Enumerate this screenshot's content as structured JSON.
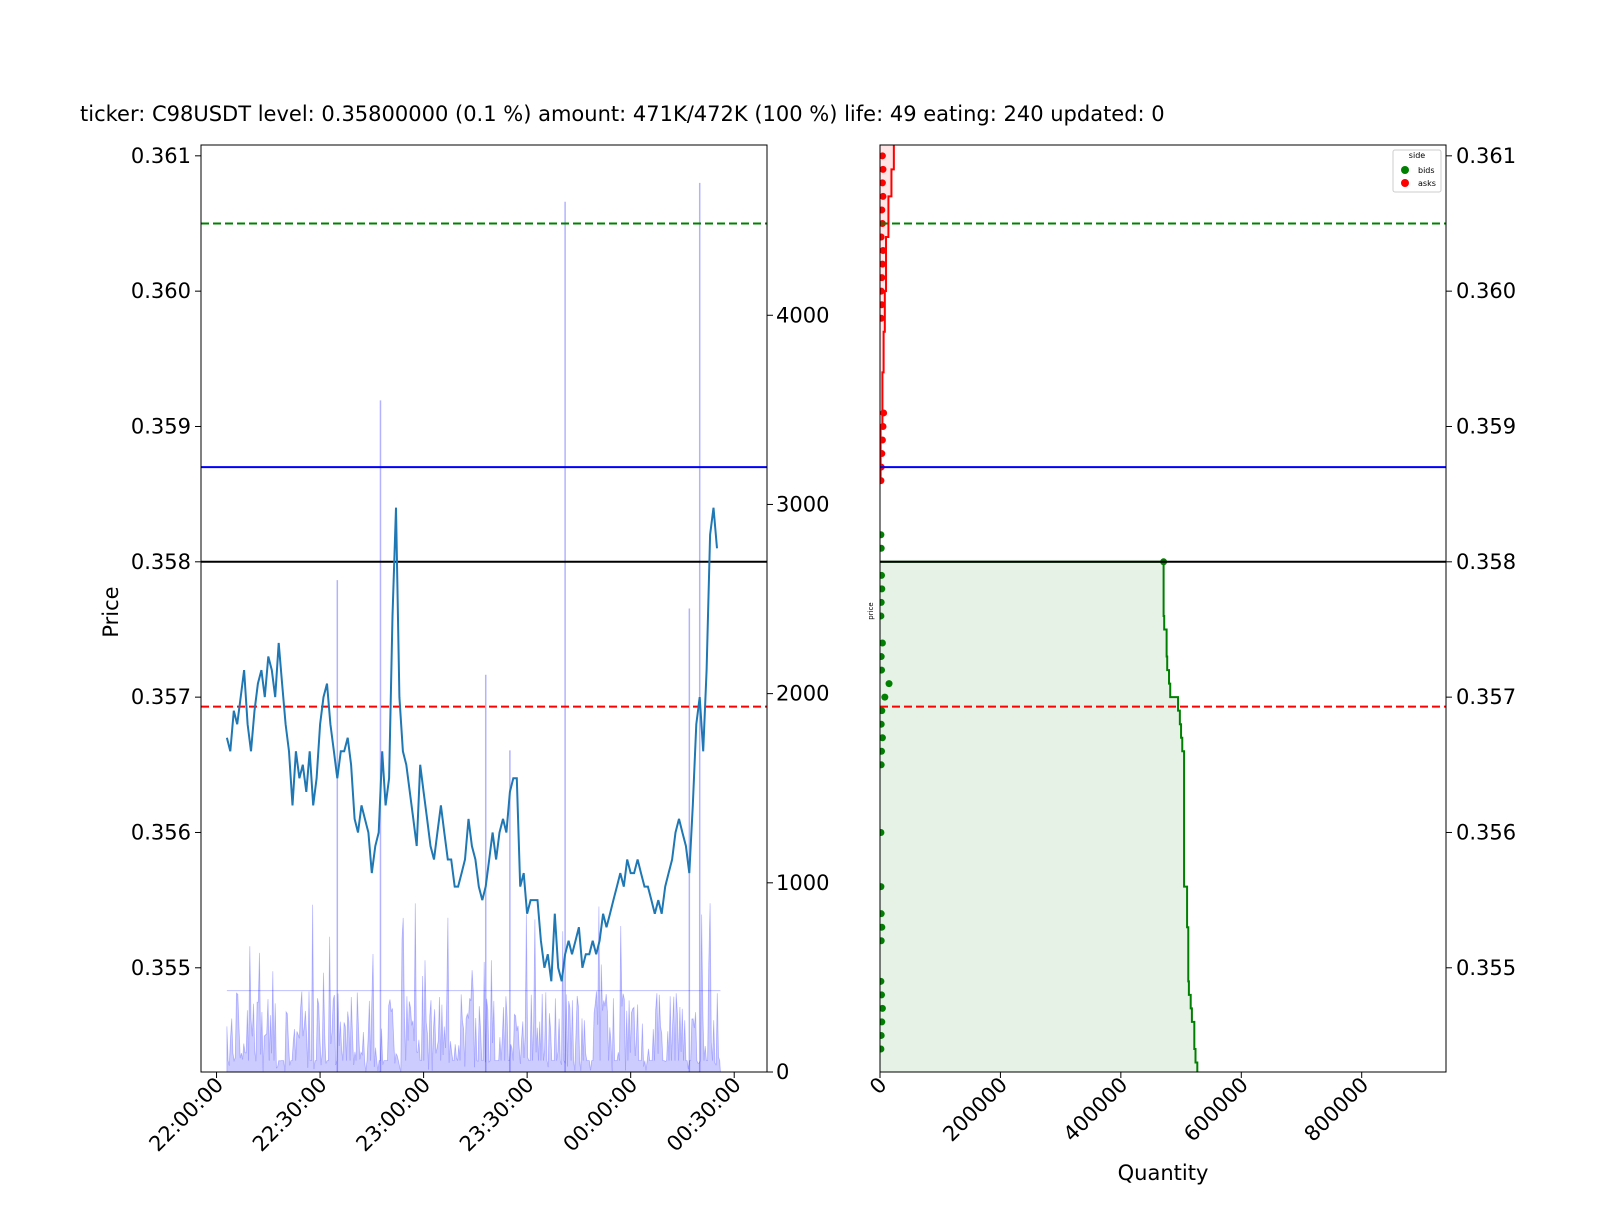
{
  "title": "ticker: C98USDT level: 0.35800000 (0.1 %) amount: 471K/472K (100 %)  life: 49 eating: 240 updated: 0",
  "colors": {
    "price_line": "#1f77b4",
    "volume_fill": "#0000ff",
    "bids": "#008000",
    "asks": "#ff0000",
    "level_line": "#000000",
    "mid_line": "#0000ff"
  },
  "chart_data": [
    {
      "type": "line",
      "name": "price-history",
      "ylabel": "Price",
      "xlabel": "",
      "ylim": [
        0.35423,
        0.36108
      ],
      "x_tick_labels": [
        "22:00:00",
        "22:30:00",
        "23:00:00",
        "23:30:00",
        "00:00:00",
        "00:30:00"
      ],
      "x_tick_minutes": [
        0,
        30,
        60,
        90,
        120,
        150
      ],
      "x_range_minutes": [
        -4.5,
        159.5
      ],
      "y_ticks": [
        0.355,
        0.356,
        0.357,
        0.358,
        0.359,
        0.36,
        0.361
      ],
      "y_tick_labels": [
        "0.355",
        "0.356",
        "0.357",
        "0.358",
        "0.359",
        "0.360",
        "0.361"
      ],
      "secondary_y_ticks": [
        0,
        1000,
        2000,
        3000,
        4000
      ],
      "secondary_ylim": [
        0,
        4900
      ],
      "hlines": [
        {
          "value": 0.3605,
          "color": "#008000",
          "style": "dashed"
        },
        {
          "value": 0.3587,
          "color": "#0000ff",
          "style": "solid"
        },
        {
          "value": 0.358,
          "color": "#000000",
          "style": "solid"
        },
        {
          "value": 0.35693,
          "color": "#ff0000",
          "style": "dashed"
        }
      ],
      "price_points": [
        [
          3,
          0.3567
        ],
        [
          4,
          0.3566
        ],
        [
          5,
          0.3569
        ],
        [
          6,
          0.3568
        ],
        [
          7,
          0.357
        ],
        [
          8,
          0.3572
        ],
        [
          9,
          0.3568
        ],
        [
          10,
          0.3566
        ],
        [
          11,
          0.3569
        ],
        [
          12,
          0.3571
        ],
        [
          13,
          0.3572
        ],
        [
          14,
          0.357
        ],
        [
          15,
          0.3573
        ],
        [
          16,
          0.3572
        ],
        [
          17,
          0.357
        ],
        [
          18,
          0.3574
        ],
        [
          19,
          0.3571
        ],
        [
          20,
          0.3568
        ],
        [
          21,
          0.3566
        ],
        [
          22,
          0.3562
        ],
        [
          23,
          0.3566
        ],
        [
          24,
          0.3564
        ],
        [
          25,
          0.3565
        ],
        [
          26,
          0.3563
        ],
        [
          27,
          0.3566
        ],
        [
          28,
          0.3562
        ],
        [
          29,
          0.3564
        ],
        [
          30,
          0.3568
        ],
        [
          31,
          0.357
        ],
        [
          32,
          0.3571
        ],
        [
          33,
          0.3568
        ],
        [
          34,
          0.3566
        ],
        [
          35,
          0.3564
        ],
        [
          36,
          0.3566
        ],
        [
          37,
          0.3566
        ],
        [
          38,
          0.3567
        ],
        [
          39,
          0.3565
        ],
        [
          40,
          0.3561
        ],
        [
          41,
          0.356
        ],
        [
          42,
          0.3562
        ],
        [
          43,
          0.3561
        ],
        [
          44,
          0.356
        ],
        [
          45,
          0.3557
        ],
        [
          46,
          0.3559
        ],
        [
          47,
          0.356
        ],
        [
          48,
          0.3566
        ],
        [
          49,
          0.3562
        ],
        [
          50,
          0.3564
        ],
        [
          51,
          0.3576
        ],
        [
          52,
          0.3584
        ],
        [
          53,
          0.357
        ],
        [
          54,
          0.3566
        ],
        [
          55,
          0.3565
        ],
        [
          56,
          0.3563
        ],
        [
          57,
          0.3561
        ],
        [
          58,
          0.3559
        ],
        [
          59,
          0.3565
        ],
        [
          60,
          0.3563
        ],
        [
          61,
          0.3561
        ],
        [
          62,
          0.3559
        ],
        [
          63,
          0.3558
        ],
        [
          64,
          0.356
        ],
        [
          65,
          0.3562
        ],
        [
          66,
          0.356
        ],
        [
          67,
          0.3558
        ],
        [
          68,
          0.3558
        ],
        [
          69,
          0.3556
        ],
        [
          70,
          0.3556
        ],
        [
          71,
          0.3557
        ],
        [
          72,
          0.3558
        ],
        [
          73,
          0.3561
        ],
        [
          74,
          0.3559
        ],
        [
          75,
          0.3558
        ],
        [
          76,
          0.3556
        ],
        [
          77,
          0.3555
        ],
        [
          78,
          0.3556
        ],
        [
          79,
          0.3558
        ],
        [
          80,
          0.356
        ],
        [
          81,
          0.3558
        ],
        [
          82,
          0.356
        ],
        [
          83,
          0.3561
        ],
        [
          84,
          0.356
        ],
        [
          85,
          0.3563
        ],
        [
          86,
          0.3564
        ],
        [
          87,
          0.3564
        ],
        [
          88,
          0.3556
        ],
        [
          89,
          0.3557
        ],
        [
          90,
          0.3554
        ],
        [
          91,
          0.3555
        ],
        [
          92,
          0.3555
        ],
        [
          93,
          0.3555
        ],
        [
          94,
          0.3552
        ],
        [
          95,
          0.355
        ],
        [
          96,
          0.3551
        ],
        [
          97,
          0.3549
        ],
        [
          98,
          0.3554
        ],
        [
          99,
          0.355
        ],
        [
          100,
          0.3549
        ],
        [
          101,
          0.3551
        ],
        [
          102,
          0.3552
        ],
        [
          103,
          0.3551
        ],
        [
          104,
          0.3552
        ],
        [
          105,
          0.3553
        ],
        [
          106,
          0.355
        ],
        [
          107,
          0.3551
        ],
        [
          108,
          0.3551
        ],
        [
          109,
          0.3552
        ],
        [
          110,
          0.3551
        ],
        [
          111,
          0.3552
        ],
        [
          112,
          0.3554
        ],
        [
          113,
          0.3553
        ],
        [
          114,
          0.3554
        ],
        [
          115,
          0.3555
        ],
        [
          116,
          0.3556
        ],
        [
          117,
          0.3557
        ],
        [
          118,
          0.3556
        ],
        [
          119,
          0.3558
        ],
        [
          120,
          0.3557
        ],
        [
          121,
          0.3557
        ],
        [
          122,
          0.3558
        ],
        [
          123,
          0.3557
        ],
        [
          124,
          0.3556
        ],
        [
          125,
          0.3556
        ],
        [
          126,
          0.3555
        ],
        [
          127,
          0.3554
        ],
        [
          128,
          0.3555
        ],
        [
          129,
          0.3554
        ],
        [
          130,
          0.3556
        ],
        [
          131,
          0.3557
        ],
        [
          132,
          0.3558
        ],
        [
          133,
          0.356
        ],
        [
          134,
          0.3561
        ],
        [
          135,
          0.356
        ],
        [
          136,
          0.3559
        ],
        [
          137,
          0.3557
        ],
        [
          138,
          0.3562
        ],
        [
          139,
          0.3568
        ],
        [
          140,
          0.357
        ],
        [
          141,
          0.3566
        ],
        [
          142,
          0.3572
        ],
        [
          143,
          0.3582
        ],
        [
          144,
          0.3584
        ],
        [
          145,
          0.3581
        ]
      ],
      "volume_spikes": [
        [
          35,
          2600
        ],
        [
          47.5,
          3550
        ],
        [
          78,
          2100
        ],
        [
          85,
          1700
        ],
        [
          101,
          4600
        ],
        [
          137,
          2450
        ],
        [
          140,
          4700
        ]
      ]
    },
    {
      "type": "scatter",
      "name": "order-book-depth",
      "xlabel": "Quantity",
      "ylabel": "price",
      "xlim": [
        0,
        940000
      ],
      "ylim": [
        0.35423,
        0.36108
      ],
      "x_ticks": [
        0,
        200000,
        400000,
        600000,
        800000
      ],
      "x_tick_labels": [
        "0",
        "200000",
        "400000",
        "600000",
        "800000"
      ],
      "y_ticks": [
        0.355,
        0.356,
        0.357,
        0.358,
        0.359,
        0.36,
        0.361
      ],
      "y_tick_labels": [
        "0.355",
        "0.356",
        "0.357",
        "0.358",
        "0.359",
        "0.360",
        "0.361"
      ],
      "legend": {
        "title": "side",
        "placement": "top-right",
        "entries": [
          "bids",
          "asks"
        ]
      },
      "bids_points": [
        [
          471000,
          0.358
        ],
        [
          2000,
          0.3581
        ],
        [
          1500,
          0.3582
        ],
        [
          2500,
          0.3579
        ],
        [
          3000,
          0.3578
        ],
        [
          2000,
          0.3577
        ],
        [
          1500,
          0.3576
        ],
        [
          4000,
          0.3574
        ],
        [
          2000,
          0.3573
        ],
        [
          2500,
          0.3572
        ],
        [
          15000,
          0.3571
        ],
        [
          8000,
          0.357
        ],
        [
          3000,
          0.3569
        ],
        [
          2000,
          0.3568
        ],
        [
          4000,
          0.3567
        ],
        [
          2500,
          0.3566
        ],
        [
          2000,
          0.3565
        ],
        [
          1500,
          0.356
        ],
        [
          1500,
          0.3556
        ],
        [
          2000,
          0.3554
        ],
        [
          3000,
          0.3553
        ],
        [
          2000,
          0.3552
        ],
        [
          1500,
          0.3549
        ],
        [
          2500,
          0.3548
        ],
        [
          4000,
          0.3547
        ],
        [
          3000,
          0.3546
        ],
        [
          2000,
          0.3545
        ],
        [
          1500,
          0.3544
        ]
      ],
      "asks_points": [
        [
          1500,
          0.3586
        ],
        [
          2000,
          0.3587
        ],
        [
          3000,
          0.3588
        ],
        [
          4000,
          0.3589
        ],
        [
          5000,
          0.359
        ],
        [
          6000,
          0.3591
        ],
        [
          2000,
          0.3598
        ],
        [
          3000,
          0.3599
        ],
        [
          2000,
          0.36
        ],
        [
          3000,
          0.3601
        ],
        [
          4000,
          0.3602
        ],
        [
          5000,
          0.3603
        ],
        [
          2000,
          0.3604
        ],
        [
          4000,
          0.3605
        ],
        [
          3000,
          0.3606
        ],
        [
          5000,
          0.3607
        ],
        [
          4000,
          0.3608
        ],
        [
          5000,
          0.3609
        ],
        [
          4000,
          0.361
        ]
      ],
      "bids_step": [
        [
          0.358,
          471000
        ],
        [
          0.3576,
          472000
        ],
        [
          0.3575,
          476000
        ],
        [
          0.3573,
          477000
        ],
        [
          0.3572,
          480000
        ],
        [
          0.3571,
          482000
        ],
        [
          0.357,
          495000
        ],
        [
          0.3569,
          498000
        ],
        [
          0.3568,
          500000
        ],
        [
          0.3567,
          502000
        ],
        [
          0.3566,
          505000
        ],
        [
          0.3556,
          510000
        ],
        [
          0.3553,
          512000
        ],
        [
          0.3549,
          513000
        ],
        [
          0.3548,
          516000
        ],
        [
          0.3547,
          518000
        ],
        [
          0.3546,
          522000
        ],
        [
          0.3544,
          524000
        ],
        [
          0.3543,
          527000
        ]
      ],
      "asks_step": [
        [
          0.3586,
          1000
        ],
        [
          0.359,
          4000
        ],
        [
          0.3594,
          6000
        ],
        [
          0.3597,
          8000
        ],
        [
          0.36,
          10000
        ],
        [
          0.3604,
          14000
        ],
        [
          0.3607,
          19000
        ],
        [
          0.3609,
          23000
        ],
        [
          0.3611,
          28000
        ]
      ]
    }
  ]
}
